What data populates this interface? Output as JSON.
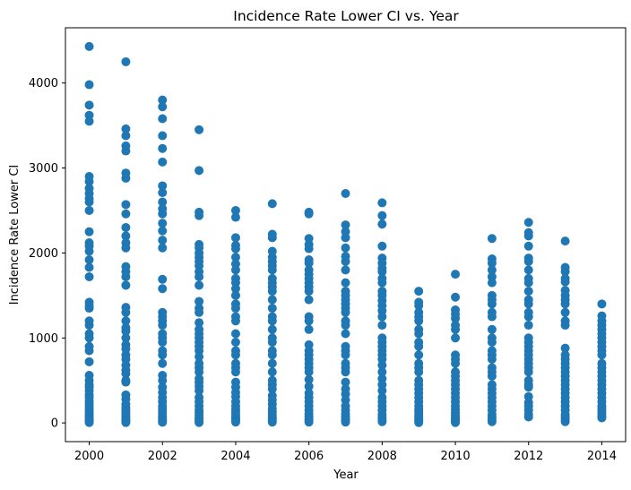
{
  "chart_data": {
    "type": "scatter",
    "title": "Incidence Rate Lower CI vs. Year",
    "xlabel": "Year",
    "ylabel": "Incidence Rate Lower CI",
    "xlim": [
      1999.35,
      2014.65
    ],
    "ylim": [
      -220,
      4650
    ],
    "xticks": [
      2000,
      2002,
      2004,
      2006,
      2008,
      2010,
      2012,
      2014
    ],
    "xtick_labels": [
      "2000",
      "2002",
      "2004",
      "2006",
      "2008",
      "2010",
      "2012",
      "2014"
    ],
    "yticks": [
      0,
      1000,
      2000,
      3000,
      4000
    ],
    "ytick_labels": [
      "0",
      "1000",
      "2000",
      "3000",
      "4000"
    ],
    "grid": false,
    "marker_color": "#1f77b4",
    "series": [
      {
        "points": [
          {
            "x": 2000,
            "y": [
              4430,
              3980,
              3740,
              3620,
              3550,
              2900,
              2840,
              2760,
              2700,
              2640,
              2600,
              2500,
              2250,
              2120,
              2080,
              2020,
              1920,
              1830,
              1720,
              1420,
              1380,
              1350,
              1200,
              1150,
              1050,
              1000,
              900,
              850,
              720,
              560,
              500,
              450,
              420,
              380,
              330,
              300,
              260,
              230,
              200,
              170,
              140,
              110,
              90,
              70,
              50,
              30,
              15,
              5
            ]
          },
          {
            "x": 2001,
            "y": [
              4250,
              3460,
              3380,
              3260,
              3200,
              2940,
              2880,
              2570,
              2460,
              2300,
              2200,
              2120,
              2060,
              1840,
              1780,
              1720,
              1620,
              1360,
              1300,
              1200,
              1120,
              1080,
              1000,
              920,
              870,
              800,
              750,
              680,
              620,
              580,
              500,
              480,
              330,
              280,
              220,
              180,
              150,
              120,
              90,
              70,
              50,
              30,
              15,
              5
            ]
          },
          {
            "x": 2002,
            "y": [
              3800,
              3720,
              3580,
              3380,
              3230,
              3070,
              2790,
              2710,
              2600,
              2520,
              2460,
              2350,
              2260,
              2150,
              2060,
              1690,
              1580,
              1300,
              1250,
              1200,
              1150,
              1050,
              1000,
              950,
              850,
              800,
              700,
              560,
              500,
              420,
              360,
              300,
              250,
              200,
              170,
              140,
              110,
              80,
              60,
              40,
              20,
              8
            ]
          },
          {
            "x": 2003,
            "y": [
              3450,
              2970,
              2480,
              2440,
              2100,
              2060,
              2000,
              1950,
              1900,
              1850,
              1780,
              1720,
              1620,
              1430,
              1350,
              1300,
              1180,
              1100,
              1050,
              1000,
              950,
              900,
              850,
              780,
              700,
              650,
              600,
              520,
              480,
              430,
              380,
              300,
              250,
              200,
              150,
              120,
              90,
              60,
              40,
              20,
              5
            ]
          },
          {
            "x": 2004,
            "y": [
              2500,
              2420,
              2180,
              2090,
              2050,
              1950,
              1870,
              1800,
              1700,
              1650,
              1580,
              1500,
              1400,
              1350,
              1250,
              1200,
              1050,
              950,
              850,
              800,
              700,
              650,
              600,
              480,
              420,
              360,
              310,
              250,
              200,
              160,
              130,
              100,
              70,
              50,
              30,
              10
            ]
          },
          {
            "x": 2005,
            "y": [
              2580,
              2220,
              2180,
              2020,
              1950,
              1900,
              1850,
              1800,
              1700,
              1650,
              1600,
              1550,
              1450,
              1350,
              1250,
              1200,
              1100,
              1000,
              950,
              850,
              800,
              700,
              600,
              500,
              450,
              400,
              320,
              270,
              220,
              170,
              130,
              100,
              70,
              50,
              30,
              10
            ]
          },
          {
            "x": 2006,
            "y": [
              2480,
              2460,
              2170,
              2100,
              2050,
              1920,
              1880,
              1800,
              1750,
              1700,
              1650,
              1600,
              1550,
              1450,
              1250,
              1200,
              1100,
              920,
              850,
              800,
              750,
              700,
              650,
              600,
              510,
              430,
              350,
              300,
              250,
              200,
              150,
              110,
              80,
              50,
              30,
              10
            ]
          },
          {
            "x": 2007,
            "y": [
              2700,
              2330,
              2250,
              2180,
              2060,
              1960,
              1900,
              1800,
              1650,
              1550,
              1500,
              1450,
              1400,
              1350,
              1300,
              1200,
              1150,
              1050,
              900,
              850,
              800,
              700,
              650,
              600,
              480,
              400,
              340,
              270,
              200,
              150,
              110,
              80,
              50,
              30,
              10
            ]
          },
          {
            "x": 2008,
            "y": [
              2590,
              2440,
              2340,
              2080,
              1940,
              1880,
              1820,
              1780,
              1700,
              1650,
              1550,
              1500,
              1440,
              1380,
              1320,
              1250,
              1150,
              1000,
              950,
              900,
              850,
              800,
              750,
              680,
              600,
              520,
              450,
              380,
              300,
              250,
              200,
              150,
              100,
              70,
              40,
              15
            ]
          },
          {
            "x": 2009,
            "y": [
              1550,
              1420,
              1380,
              1300,
              1250,
              1200,
              1100,
              1050,
              950,
              900,
              800,
              700,
              650,
              600,
              500,
              450,
              400,
              350,
              300,
              250,
              200,
              160,
              130,
              100,
              80,
              60,
              40,
              20,
              5
            ]
          },
          {
            "x": 2010,
            "y": [
              1750,
              1480,
              1330,
              1280,
              1230,
              1150,
              1100,
              1000,
              800,
              750,
              700,
              600,
              550,
              500,
              450,
              400,
              350,
              300,
              250,
              200,
              160,
              120,
              90,
              60,
              40,
              20,
              5
            ]
          },
          {
            "x": 2011,
            "y": [
              2170,
              1930,
              1880,
              1800,
              1720,
              1650,
              1500,
              1450,
              1400,
              1300,
              1250,
              1100,
              1000,
              950,
              850,
              800,
              750,
              650,
              600,
              550,
              450,
              400,
              350,
              300,
              250,
              200,
              150,
              100,
              70,
              40,
              15
            ]
          },
          {
            "x": 2012,
            "y": [
              2360,
              2240,
              2200,
              2080,
              1940,
              1900,
              1800,
              1700,
              1650,
              1550,
              1450,
              1400,
              1300,
              1250,
              1150,
              1000,
              950,
              900,
              850,
              800,
              750,
              700,
              650,
              600,
              500,
              450,
              420,
              310,
              240,
              200,
              150,
              100,
              70
            ]
          },
          {
            "x": 2013,
            "y": [
              2140,
              1830,
              1780,
              1700,
              1660,
              1560,
              1500,
              1450,
              1400,
              1300,
              1200,
              1150,
              880,
              800,
              750,
              700,
              650,
              600,
              550,
              500,
              450,
              400,
              350,
              300,
              250,
              200,
              150,
              100,
              70,
              40,
              15
            ]
          },
          {
            "x": 2014,
            "y": [
              1400,
              1260,
              1200,
              1150,
              1100,
              1050,
              1000,
              950,
              900,
              850,
              800,
              700,
              650,
              600,
              550,
              500,
              450,
              400,
              350,
              300,
              250,
              200,
              170,
              140,
              110,
              80,
              60
            ]
          }
        ]
      }
    ]
  }
}
